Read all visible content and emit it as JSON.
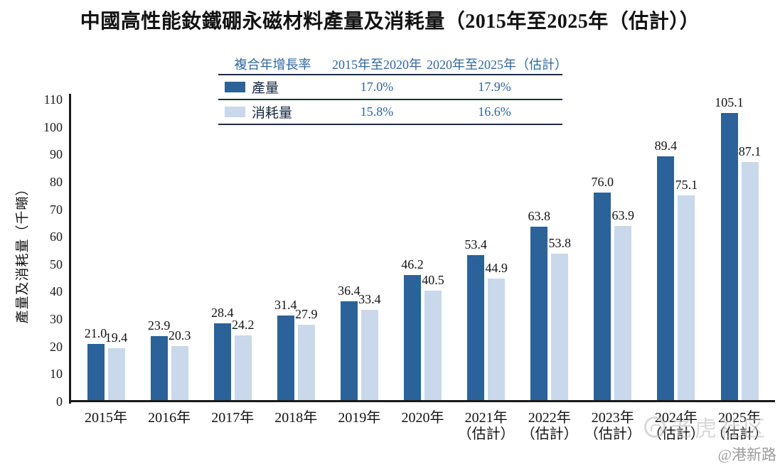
{
  "title": "中國高性能釹鐵硼永磁材料產量及消耗量（2015年至2025年（估計））",
  "cagr_table": {
    "header": [
      "複合年增長率",
      "2015年至2020年",
      "2020年至2025年（估計）"
    ],
    "rows": [
      {
        "label": "產量",
        "swatch": "production",
        "values": [
          "17.0%",
          "17.9%"
        ]
      },
      {
        "label": "消耗量",
        "swatch": "consumption",
        "values": [
          "15.8%",
          "16.6%"
        ]
      }
    ]
  },
  "chart_data": {
    "type": "bar",
    "title": "中國高性能釹鐵硼永磁材料產量及消耗量（2015年至2025年（估計））",
    "xlabel": "",
    "ylabel": "產量及消耗量（千噸）",
    "ylim": [
      0,
      110
    ],
    "ytick_step": 10,
    "grid": false,
    "legend_position": "top-table",
    "value_labels": true,
    "categories": [
      {
        "label": "2015年",
        "sublabel": ""
      },
      {
        "label": "2016年",
        "sublabel": ""
      },
      {
        "label": "2017年",
        "sublabel": ""
      },
      {
        "label": "2018年",
        "sublabel": ""
      },
      {
        "label": "2019年",
        "sublabel": ""
      },
      {
        "label": "2020年",
        "sublabel": ""
      },
      {
        "label": "2021年",
        "sublabel": "（估計）"
      },
      {
        "label": "2022年",
        "sublabel": "（估計）"
      },
      {
        "label": "2023年",
        "sublabel": "（估計）"
      },
      {
        "label": "2024年",
        "sublabel": "（估計）"
      },
      {
        "label": "2025年",
        "sublabel": "（估計）"
      }
    ],
    "series": [
      {
        "key": "production",
        "name": "產量",
        "values": [
          21.0,
          23.9,
          28.4,
          31.4,
          36.4,
          46.2,
          53.4,
          63.8,
          76.0,
          89.4,
          105.1
        ]
      },
      {
        "key": "consumption",
        "name": "消耗量",
        "values": [
          19.4,
          20.3,
          24.2,
          27.9,
          33.4,
          40.5,
          44.9,
          53.8,
          63.9,
          75.1,
          87.1
        ]
      }
    ]
  },
  "colors": {
    "production": "#2a6299",
    "consumption": "#c9d8ea",
    "table_line": "#1c2b4a",
    "table_header_blue": "#31679e",
    "table_pct_blue": "#2d6398",
    "table_label_navy": "#12263f",
    "axis_black": "#1a1a1a",
    "watermark_gray": "#b9b9b9"
  },
  "watermark": {
    "brand": "老虎社区",
    "handle": "@港新路"
  }
}
